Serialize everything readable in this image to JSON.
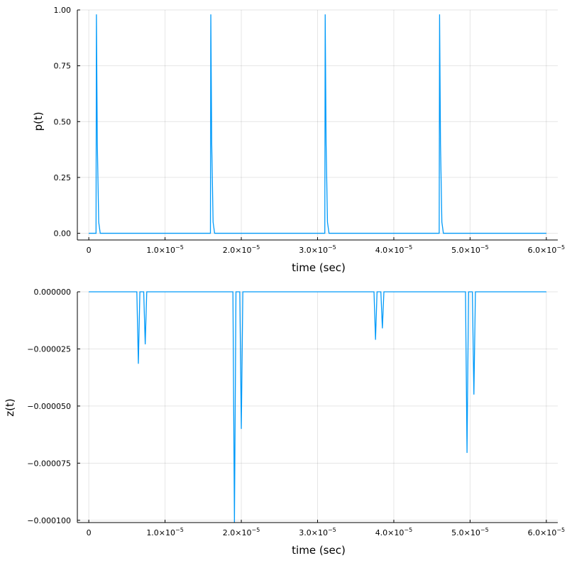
{
  "chart_data": [
    {
      "type": "line",
      "title": "",
      "xlabel": "time (sec)",
      "ylabel": "p(t)",
      "xlim": [
        -1.5e-06,
        6.15e-05
      ],
      "ylim": [
        -0.03,
        1.0
      ],
      "xticks": [
        0,
        1e-05,
        2e-05,
        3e-05,
        4e-05,
        5e-05,
        6e-05
      ],
      "xtick_labels": [
        {
          "mant": "0",
          "exp": ""
        },
        {
          "mant": "1.0×10",
          "exp": "−5"
        },
        {
          "mant": "2.0×10",
          "exp": "−5"
        },
        {
          "mant": "3.0×10",
          "exp": "−5"
        },
        {
          "mant": "4.0×10",
          "exp": "−5"
        },
        {
          "mant": "5.0×10",
          "exp": "−5"
        },
        {
          "mant": "6.0×10",
          "exp": "−5"
        }
      ],
      "yticks": [
        0,
        0.25,
        0.5,
        0.75,
        1.0
      ],
      "ytick_labels": [
        "0.00",
        "0.25",
        "0.50",
        "0.75",
        "1.00"
      ],
      "grid": true,
      "legend": "none",
      "series": [
        {
          "name": "p(t)",
          "color": "#009AF9",
          "x": [
            0,
            9.5e-07,
            1e-06,
            1.12e-06,
            1.3e-06,
            1.5e-06,
            1.6e-05,
            1.595e-05,
            1.6e-05,
            1.612e-05,
            1.63e-05,
            1.65e-05,
            3.085e-05,
            3.095e-05,
            3.1e-05,
            3.112e-05,
            3.13e-05,
            3.15e-05,
            4.585e-05,
            4.595e-05,
            4.6e-05,
            4.612e-05,
            4.63e-05,
            4.65e-05,
            6e-05
          ],
          "y": [
            0,
            0,
            0.98,
            0.4,
            0.05,
            0,
            0,
            0,
            0.98,
            0.4,
            0.05,
            0,
            0,
            0,
            0.98,
            0.4,
            0.05,
            0,
            0,
            0,
            0.98,
            0.4,
            0.05,
            0,
            0
          ]
        }
      ]
    },
    {
      "type": "line",
      "title": "",
      "xlabel": "time (sec)",
      "ylabel": "z(t)",
      "xlim": [
        -1.5e-06,
        6.15e-05
      ],
      "ylim": [
        -0.000101,
        0.0
      ],
      "xticks": [
        0,
        1e-05,
        2e-05,
        3e-05,
        4e-05,
        5e-05,
        6e-05
      ],
      "xtick_labels": [
        {
          "mant": "0",
          "exp": ""
        },
        {
          "mant": "1.0×10",
          "exp": "−5"
        },
        {
          "mant": "2.0×10",
          "exp": "−5"
        },
        {
          "mant": "3.0×10",
          "exp": "−5"
        },
        {
          "mant": "4.0×10",
          "exp": "−5"
        },
        {
          "mant": "5.0×10",
          "exp": "−5"
        },
        {
          "mant": "6.0×10",
          "exp": "−5"
        }
      ],
      "yticks": [
        0,
        -2.5e-05,
        -5e-05,
        -7.5e-05,
        -0.0001
      ],
      "ytick_labels": [
        "0.000000",
        "−0.000025",
        "−0.000050",
        "−0.000075",
        "−0.000100"
      ],
      "grid": true,
      "legend": "none",
      "series": [
        {
          "name": "z(t)",
          "color": "#009AF9",
          "x": [
            0,
            6.3e-06,
            6.5e-06,
            6.7e-06,
            7.2e-06,
            7.4e-06,
            7.6e-06,
            1.89e-05,
            1.91e-05,
            1.93e-05,
            1.98e-05,
            2e-05,
            2.02e-05,
            3.74e-05,
            3.76e-05,
            3.78e-05,
            3.83e-05,
            3.85e-05,
            3.87e-05,
            4.94e-05,
            4.96e-05,
            4.98e-05,
            5.03e-05,
            5.05e-05,
            5.07e-05,
            6e-05
          ],
          "y": [
            0,
            0,
            -3.15e-05,
            0,
            0,
            -2.3e-05,
            0,
            0,
            -0.000101,
            0,
            0,
            -6e-05,
            0,
            0,
            -2.1e-05,
            0,
            0,
            -1.6e-05,
            0,
            0,
            -7.05e-05,
            0,
            0,
            -4.5e-05,
            0,
            0
          ]
        }
      ]
    }
  ]
}
